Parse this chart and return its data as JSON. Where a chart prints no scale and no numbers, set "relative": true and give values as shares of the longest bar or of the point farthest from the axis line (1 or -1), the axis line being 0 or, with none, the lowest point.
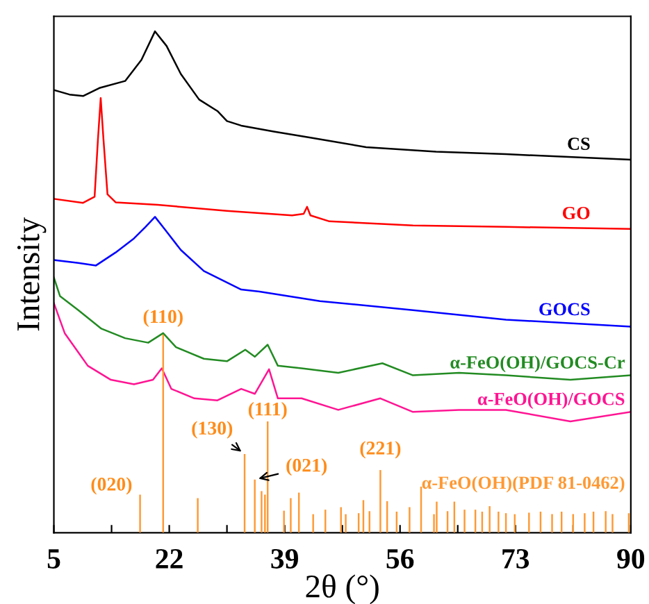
{
  "chart_data": {
    "type": "line",
    "relative": true,
    "xlabel": "2θ (°)",
    "ylabel": "Intensity",
    "xlim": [
      5,
      90
    ],
    "xticks": [
      5,
      {
        "value": 13.5,
        "label": null
      },
      22,
      {
        "value": 30.5,
        "label": null
      },
      39,
      {
        "value": 47.5,
        "label": null
      },
      56,
      {
        "value": 64.5,
        "label": null
      },
      73,
      {
        "value": 81.5,
        "label": null
      },
      90
    ],
    "tick_labels": "x",
    "grid": false,
    "series": [
      {
        "name": "CS",
        "color": "#000000",
        "x": [
          5.0,
          7.3,
          9.3,
          11.7,
          15.5,
          17.9,
          19.9,
          21.6,
          23.7,
          26.4,
          29.1,
          30.5,
          32.6,
          37.4,
          42.8,
          51.0,
          61.3,
          71.6,
          90.0
        ],
        "values": [
          0.883,
          0.874,
          0.871,
          0.887,
          0.901,
          0.943,
          1.0,
          0.971,
          0.915,
          0.864,
          0.841,
          0.821,
          0.812,
          0.8,
          0.788,
          0.769,
          0.76,
          0.755,
          0.744
        ]
      },
      {
        "name": "GO",
        "color": "#ff0000",
        "x": [
          5.0,
          9.3,
          11.0,
          11.5,
          11.9,
          12.3,
          12.9,
          14.1,
          20.3,
          30.5,
          40.1,
          41.8,
          42.3,
          42.8,
          45.6,
          57.9,
          71.6,
          90.0
        ],
        "values": [
          0.666,
          0.658,
          0.67,
          0.786,
          0.867,
          0.786,
          0.675,
          0.659,
          0.654,
          0.642,
          0.633,
          0.636,
          0.65,
          0.633,
          0.621,
          0.613,
          0.61,
          0.606
        ]
      },
      {
        "name": "GOCS",
        "color": "#0000ff",
        "x": [
          5.0,
          8.6,
          11.2,
          14.1,
          16.8,
          18.5,
          19.9,
          21.3,
          23.7,
          27.1,
          32.6,
          35.3,
          44.2,
          57.9,
          71.6,
          90.0
        ],
        "values": [
          0.544,
          0.538,
          0.533,
          0.559,
          0.587,
          0.61,
          0.63,
          0.606,
          0.564,
          0.522,
          0.485,
          0.481,
          0.462,
          0.444,
          0.425,
          0.411
        ]
      },
      {
        "name": "α-FeO(OH)/GOCS-Cr",
        "color": "#228b22",
        "x": [
          5.0,
          5.9,
          8.6,
          12.0,
          15.5,
          18.9,
          21.1,
          23.0,
          27.1,
          30.5,
          33.2,
          34.6,
          36.5,
          38.0,
          41.5,
          46.9,
          53.4,
          57.9,
          64.7,
          71.6,
          81.1,
          90.0
        ],
        "values": [
          0.509,
          0.472,
          0.444,
          0.407,
          0.388,
          0.379,
          0.398,
          0.37,
          0.347,
          0.342,
          0.365,
          0.351,
          0.375,
          0.333,
          0.328,
          0.319,
          0.338,
          0.314,
          0.319,
          0.314,
          0.305,
          0.314
        ]
      },
      {
        "name": "α-FeO(OH)/GOCS",
        "color": "#ff1493",
        "x": [
          5.0,
          6.6,
          10.0,
          13.4,
          16.8,
          19.6,
          20.9,
          22.3,
          25.7,
          29.1,
          32.6,
          34.6,
          36.7,
          38.0,
          41.5,
          46.9,
          53.1,
          57.9,
          64.7,
          71.6,
          81.1,
          90.0
        ],
        "values": [
          0.458,
          0.398,
          0.333,
          0.305,
          0.296,
          0.305,
          0.328,
          0.287,
          0.268,
          0.264,
          0.287,
          0.277,
          0.326,
          0.268,
          0.268,
          0.245,
          0.268,
          0.241,
          0.245,
          0.245,
          0.222,
          0.241
        ]
      },
      {
        "name": "α-FeO(OH)(PDF 81-0462)",
        "type": "bar",
        "color": "#ff9933",
        "x": [
          17.7,
          21.1,
          26.2,
          33.1,
          34.6,
          35.6,
          36.1,
          36.5,
          38.9,
          39.9,
          41.1,
          43.2,
          45.0,
          47.3,
          48.0,
          49.9,
          50.6,
          51.5,
          53.1,
          54.1,
          55.5,
          57.4,
          59.1,
          61.0,
          61.4,
          63.0,
          64.0,
          65.5,
          67.1,
          68.1,
          69.2,
          70.5,
          71.6,
          72.9,
          75.0,
          76.7,
          78.4,
          79.8,
          81.5,
          83.2,
          84.5,
          86.3,
          87.3,
          89.7
        ],
        "values": [
          0.076,
          0.395,
          0.069,
          0.157,
          0.106,
          0.083,
          0.076,
          0.222,
          0.044,
          0.069,
          0.08,
          0.037,
          0.046,
          0.051,
          0.037,
          0.039,
          0.065,
          0.043,
          0.125,
          0.063,
          0.042,
          0.051,
          0.092,
          0.037,
          0.062,
          0.043,
          0.062,
          0.046,
          0.046,
          0.042,
          0.053,
          0.042,
          0.039,
          0.037,
          0.04,
          0.042,
          0.037,
          0.042,
          0.037,
          0.039,
          0.042,
          0.043,
          0.037,
          0.039
        ]
      }
    ],
    "annotations": [
      {
        "text": "(020)",
        "x": 17.7,
        "y": 0.076
      },
      {
        "text": "(110)",
        "x": 21.1,
        "y": 0.395
      },
      {
        "text": "(130)",
        "x": 33.1,
        "y": 0.157
      },
      {
        "text": "(021)",
        "x": 34.6,
        "y": 0.106
      },
      {
        "text": "(111)",
        "x": 36.5,
        "y": 0.222
      },
      {
        "text": "(221)",
        "x": 53.1,
        "y": 0.125
      }
    ]
  }
}
